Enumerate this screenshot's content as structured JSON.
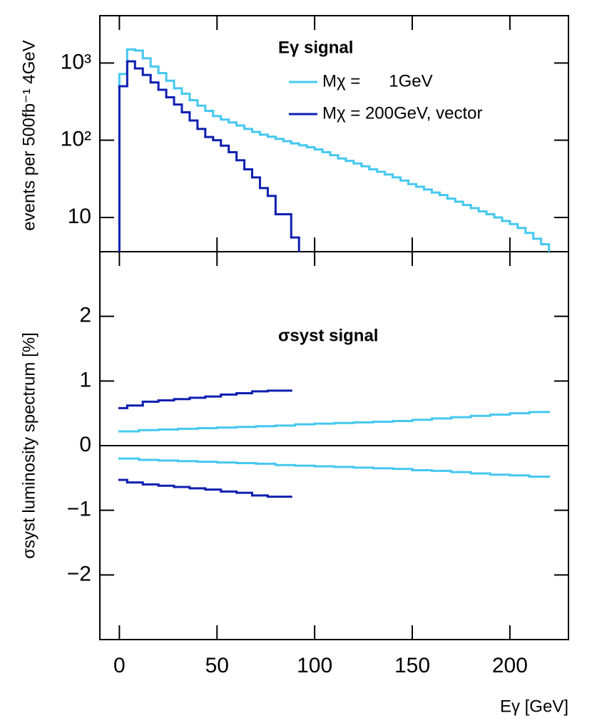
{
  "chart_data": [
    {
      "type": "histogram",
      "ylabel": "events per 500fb⁻¹ 4GeV",
      "legend_title": "Eγ signal",
      "log_y": true,
      "xlim": [
        -10,
        230
      ],
      "ylim": [
        3.6,
        4100
      ],
      "yticks": [
        10,
        {
          "value": 100,
          "label": "10²"
        },
        {
          "value": 1000,
          "label": "10³"
        }
      ],
      "bins": [
        0,
        4,
        8,
        12,
        16,
        20,
        24,
        28,
        32,
        36,
        40,
        44,
        48,
        52,
        56,
        60,
        64,
        68,
        72,
        76,
        80,
        84,
        88,
        92,
        96,
        100,
        104,
        108,
        112,
        116,
        120,
        124,
        128,
        132,
        136,
        140,
        144,
        148,
        152,
        156,
        160,
        164,
        168,
        172,
        176,
        180,
        184,
        188,
        192,
        196,
        200,
        204,
        208,
        212,
        216,
        220
      ],
      "series": [
        {
          "name": "Mχ =      1GeV",
          "color": "#45c8f0",
          "values": [
            720,
            1500,
            1450,
            1150,
            900,
            740,
            590,
            470,
            400,
            330,
            280,
            240,
            205,
            185,
            170,
            155,
            140,
            128,
            118,
            111,
            104,
            97,
            91,
            86,
            81,
            76,
            70,
            64,
            58,
            54,
            50,
            46,
            42,
            39,
            36,
            33,
            30,
            27,
            25,
            23,
            21,
            19.5,
            17.5,
            16,
            14.5,
            13.2,
            12,
            11,
            10,
            9,
            8.2,
            7.3,
            6.3,
            5.3,
            4.5
          ]
        },
        {
          "name": "Mχ = 200GeV, vector",
          "color": "#0f1fb0",
          "values": [
            500,
            1050,
            850,
            700,
            560,
            450,
            360,
            290,
            230,
            180,
            140,
            110,
            100,
            85,
            70,
            55,
            42,
            33,
            24,
            19,
            11,
            11,
            5.5,
            null,
            null,
            null,
            null,
            null,
            null,
            null,
            null,
            null,
            null,
            null,
            null,
            null,
            null,
            null,
            null,
            null,
            null,
            null,
            null,
            null,
            null,
            null,
            null,
            null,
            null,
            null,
            null,
            null,
            null,
            null,
            null
          ]
        }
      ]
    },
    {
      "type": "histogram",
      "ylabel": "σsyst luminosity spectrum [%]",
      "xlabel": "Eγ [GeV]",
      "annotation": "σsyst signal",
      "xlim": [
        -10,
        230
      ],
      "ylim": [
        -3,
        3
      ],
      "xticks": [
        0,
        50,
        100,
        150,
        200
      ],
      "yticks": [
        {
          "value": -2,
          "label": "−2"
        },
        {
          "value": -1,
          "label": "−1"
        },
        0,
        1,
        2
      ],
      "series": [
        {
          "color": "#45c8f0",
          "bins": [
            0,
            10,
            20,
            30,
            40,
            50,
            60,
            70,
            80,
            90,
            100,
            110,
            120,
            130,
            140,
            150,
            160,
            170,
            180,
            190,
            200,
            210,
            220
          ],
          "values": [
            0.22,
            0.24,
            0.25,
            0.26,
            0.27,
            0.28,
            0.29,
            0.3,
            0.31,
            0.33,
            0.34,
            0.35,
            0.36,
            0.37,
            0.38,
            0.4,
            0.42,
            0.44,
            0.46,
            0.48,
            0.5,
            0.52
          ]
        },
        {
          "color": "#45c8f0",
          "bins": [
            0,
            10,
            20,
            30,
            40,
            50,
            60,
            70,
            80,
            90,
            100,
            110,
            120,
            130,
            140,
            150,
            160,
            170,
            180,
            190,
            200,
            210,
            220
          ],
          "values": [
            -0.2,
            -0.22,
            -0.23,
            -0.24,
            -0.25,
            -0.26,
            -0.27,
            -0.28,
            -0.3,
            -0.31,
            -0.32,
            -0.33,
            -0.34,
            -0.35,
            -0.36,
            -0.38,
            -0.39,
            -0.41,
            -0.43,
            -0.45,
            -0.46,
            -0.48
          ]
        },
        {
          "color": "#0f1fb0",
          "bins": [
            0,
            4,
            12,
            20,
            28,
            36,
            44,
            52,
            60,
            68,
            76,
            88
          ],
          "values": [
            0.58,
            0.62,
            0.68,
            0.7,
            0.72,
            0.74,
            0.76,
            0.79,
            0.81,
            0.84,
            0.85
          ]
        },
        {
          "color": "#0f1fb0",
          "bins": [
            0,
            4,
            12,
            20,
            28,
            36,
            44,
            52,
            60,
            68,
            76,
            88
          ],
          "values": [
            -0.53,
            -0.57,
            -0.6,
            -0.62,
            -0.64,
            -0.66,
            -0.68,
            -0.71,
            -0.73,
            -0.77,
            -0.79
          ]
        }
      ]
    }
  ]
}
